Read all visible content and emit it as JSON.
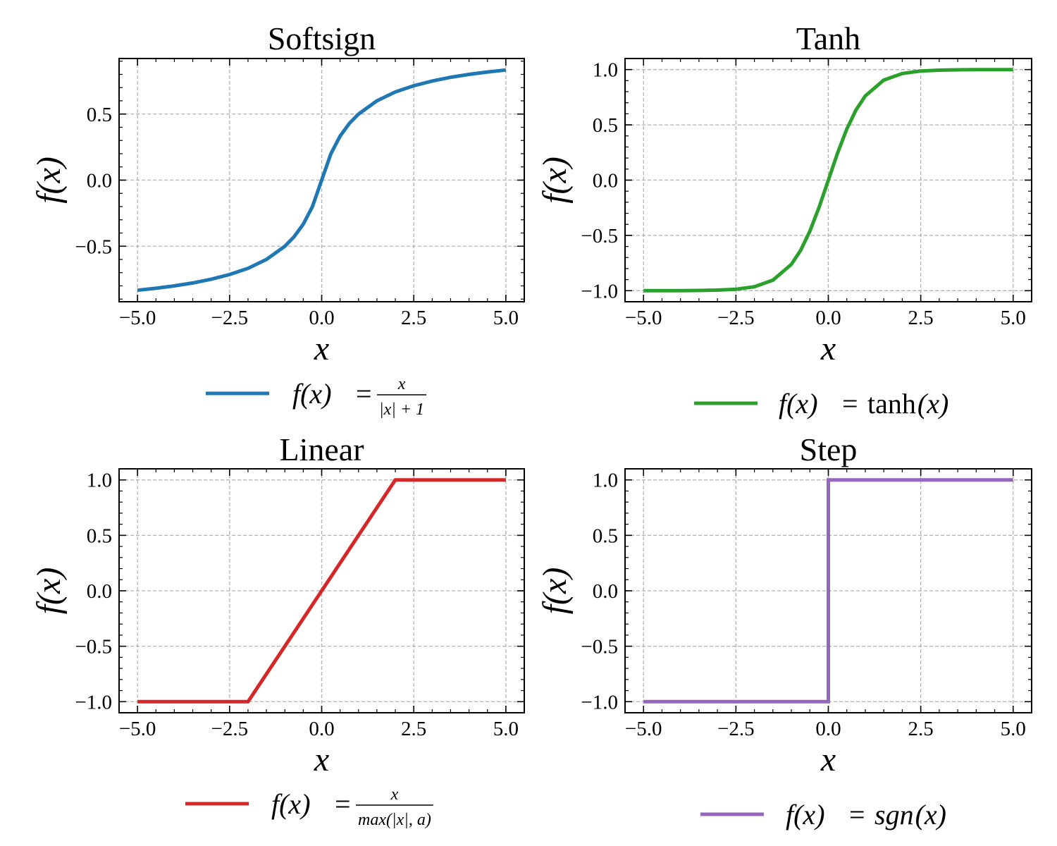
{
  "figure": {
    "layout": "2x2 grid of line plots",
    "colors": {
      "softsign": "#1f77b4",
      "tanh": "#2ca02c",
      "linear": "#d62728",
      "step": "#9467bd",
      "grid": "#b0b0b0",
      "axes": "#000000"
    }
  },
  "chart_data": [
    {
      "type": "line",
      "title": "Softsign",
      "xlabel": "x",
      "ylabel": "f(x)",
      "xlim": [
        -5.5,
        5.5
      ],
      "ylim": [
        -0.92,
        0.92
      ],
      "xticks": [
        -5.0,
        -2.5,
        0.0,
        2.5,
        5.0
      ],
      "xtick_labels": [
        "−5.0",
        "−2.5",
        "0.0",
        "2.5",
        "5.0"
      ],
      "yticks": [
        -0.5,
        0.0,
        0.5
      ],
      "ytick_labels": [
        "−0.5",
        "0.0",
        "0.5"
      ],
      "grid": true,
      "legend_position": "below",
      "series": [
        {
          "name": "f(x) = x / (|x| + 1)",
          "color": "#1f77b4",
          "x": [
            -5,
            -4.5,
            -4,
            -3.5,
            -3,
            -2.5,
            -2,
            -1.5,
            -1,
            -0.75,
            -0.5,
            -0.25,
            0,
            0.25,
            0.5,
            0.75,
            1,
            1.5,
            2,
            2.5,
            3,
            3.5,
            4,
            4.5,
            5
          ],
          "y": [
            -0.833,
            -0.818,
            -0.8,
            -0.778,
            -0.75,
            -0.714,
            -0.667,
            -0.6,
            -0.5,
            -0.429,
            -0.333,
            -0.2,
            0,
            0.2,
            0.333,
            0.429,
            0.5,
            0.6,
            0.667,
            0.714,
            0.75,
            0.778,
            0.8,
            0.818,
            0.833
          ]
        }
      ],
      "legend": {
        "prefix": "f(x)",
        "equals": "=",
        "numerator": "x",
        "denominator": "|x| + 1"
      }
    },
    {
      "type": "line",
      "title": "Tanh",
      "xlabel": "x",
      "ylabel": "f(x)",
      "xlim": [
        -5.5,
        5.5
      ],
      "ylim": [
        -1.1,
        1.1
      ],
      "xticks": [
        -5.0,
        -2.5,
        0.0,
        2.5,
        5.0
      ],
      "xtick_labels": [
        "−5.0",
        "−2.5",
        "0.0",
        "2.5",
        "5.0"
      ],
      "yticks": [
        -1.0,
        -0.5,
        0.0,
        0.5,
        1.0
      ],
      "ytick_labels": [
        "−1.0",
        "−0.5",
        "0.0",
        "0.5",
        "1.0"
      ],
      "grid": true,
      "legend_position": "below",
      "series": [
        {
          "name": "f(x) = tanh(x)",
          "color": "#2ca02c",
          "x": [
            -5,
            -4.5,
            -4,
            -3.5,
            -3,
            -2.5,
            -2,
            -1.5,
            -1,
            -0.75,
            -0.5,
            -0.25,
            0,
            0.25,
            0.5,
            0.75,
            1,
            1.5,
            2,
            2.5,
            3,
            3.5,
            4,
            4.5,
            5
          ],
          "y": [
            -1.0,
            -1.0,
            -0.999,
            -0.998,
            -0.995,
            -0.987,
            -0.964,
            -0.905,
            -0.762,
            -0.635,
            -0.462,
            -0.245,
            0,
            0.245,
            0.462,
            0.635,
            0.762,
            0.905,
            0.964,
            0.987,
            0.995,
            0.998,
            0.999,
            1.0,
            1.0
          ]
        }
      ],
      "legend": {
        "prefix": "f(x)",
        "equals": "=",
        "func": "tanh",
        "arg": "(x)"
      }
    },
    {
      "type": "line",
      "title": "Linear",
      "xlabel": "x",
      "ylabel": "f(x)",
      "xlim": [
        -5.5,
        5.5
      ],
      "ylim": [
        -1.1,
        1.1
      ],
      "xticks": [
        -5.0,
        -2.5,
        0.0,
        2.5,
        5.0
      ],
      "xtick_labels": [
        "−5.0",
        "−2.5",
        "0.0",
        "2.5",
        "5.0"
      ],
      "yticks": [
        -1.0,
        -0.5,
        0.0,
        0.5,
        1.0
      ],
      "ytick_labels": [
        "−1.0",
        "−0.5",
        "0.0",
        "0.5",
        "1.0"
      ],
      "grid": true,
      "legend_position": "below",
      "series": [
        {
          "name": "f(x) = x / max(|x|, a)",
          "color": "#d62728",
          "x": [
            -5,
            -2,
            2,
            5
          ],
          "y": [
            -1.0,
            -1.0,
            1.0,
            1.0
          ]
        }
      ],
      "legend": {
        "prefix": "f(x)",
        "equals": "=",
        "numerator": "x",
        "denominator": "max(|x|, a)"
      }
    },
    {
      "type": "line",
      "title": "Step",
      "xlabel": "x",
      "ylabel": "f(x)",
      "xlim": [
        -5.5,
        5.5
      ],
      "ylim": [
        -1.1,
        1.1
      ],
      "xticks": [
        -5.0,
        -2.5,
        0.0,
        2.5,
        5.0
      ],
      "xtick_labels": [
        "−5.0",
        "−2.5",
        "0.0",
        "2.5",
        "5.0"
      ],
      "yticks": [
        -1.0,
        -0.5,
        0.0,
        0.5,
        1.0
      ],
      "ytick_labels": [
        "−1.0",
        "−0.5",
        "0.0",
        "0.5",
        "1.0"
      ],
      "grid": true,
      "legend_position": "below",
      "series": [
        {
          "name": "f(x) = sgn(x)",
          "color": "#9467bd",
          "x": [
            -5,
            0,
            0,
            5
          ],
          "y": [
            -1.0,
            -1.0,
            1.0,
            1.0
          ]
        }
      ],
      "legend": {
        "prefix": "f(x)",
        "equals": "=",
        "func": "sgn",
        "arg": "(x)"
      }
    }
  ]
}
